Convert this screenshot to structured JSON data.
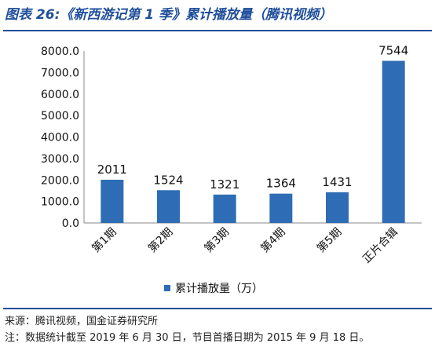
{
  "header": {
    "title": "图表 26:《新西游记第 1 季》累计播放量（腾讯视频）"
  },
  "chart_data": {
    "type": "bar",
    "categories": [
      "第1期",
      "第2期",
      "第3期",
      "第4期",
      "第5期",
      "正片合辑"
    ],
    "series": [
      {
        "name": "累计播放量（万）",
        "values": [
          2011,
          1524,
          1321,
          1364,
          1431,
          7544
        ]
      }
    ],
    "data_labels": [
      "2011",
      "1524",
      "1321",
      "1364",
      "1431",
      "7544"
    ],
    "y_ticks": [
      "0.0",
      "1000.0",
      "2000.0",
      "3000.0",
      "4000.0",
      "5000.0",
      "6000.0",
      "7000.0",
      "8000.0"
    ],
    "ylim": [
      0,
      8000
    ],
    "grid": false,
    "legend_position": "bottom",
    "bar_color": "#2e6db6",
    "xlabel": "",
    "ylabel": ""
  },
  "footer": {
    "source": "来源：腾讯视频，国金证券研究所",
    "note": "注：数据统计截至 2019 年 6 月 30 日，节目首播日期为 2015 年 9 月 18 日。"
  },
  "colors": {
    "accent": "#1f4e9a",
    "bar": "#2e6db6"
  }
}
